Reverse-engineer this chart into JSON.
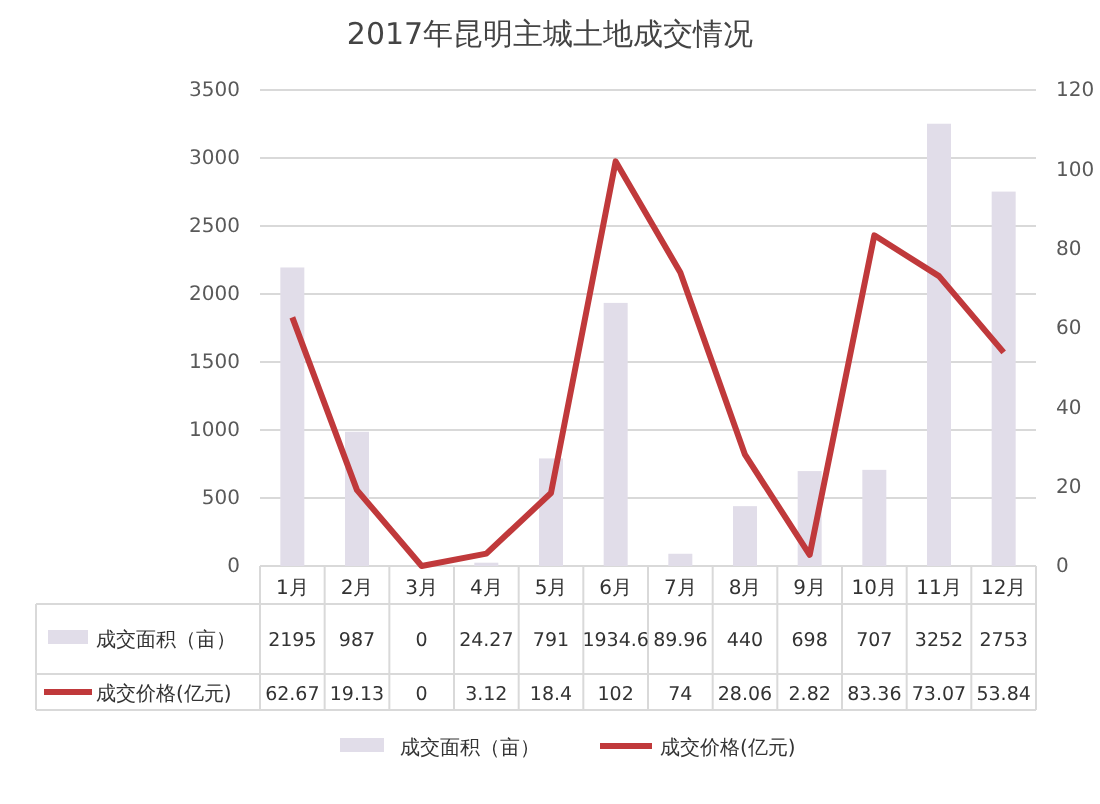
{
  "chart_data": {
    "type": "bar",
    "title": "2017年昆明主城土地成交情况",
    "categories": [
      "1月",
      "2月",
      "3月",
      "4月",
      "5月",
      "6月",
      "7月",
      "8月",
      "9月",
      "10月",
      "11月",
      "12月"
    ],
    "series": [
      {
        "name": "成交面积（亩）",
        "color": "#e1dde9",
        "values": [
          2195,
          987,
          0,
          24.27,
          791,
          1934.6,
          89.96,
          440,
          698,
          707,
          3252,
          2753
        ]
      },
      {
        "name": "成交价格(亿元)",
        "type": "line",
        "axis": "y2",
        "color": "#c0393b",
        "values": [
          62.67,
          19.13,
          0,
          3.12,
          18.4,
          102,
          74,
          28.06,
          2.82,
          83.36,
          73.07,
          53.84
        ]
      }
    ],
    "ylim": [
      0,
      3500
    ],
    "yticks": [
      0,
      500,
      1000,
      1500,
      2000,
      2500,
      3000,
      3500
    ],
    "y2lim": [
      0,
      120
    ],
    "y2ticks": [
      0,
      20,
      40,
      60,
      80,
      100,
      120
    ],
    "grid": "y",
    "legend": "bottom",
    "data_labels": true,
    "marker": "none",
    "line_style": "solid"
  }
}
